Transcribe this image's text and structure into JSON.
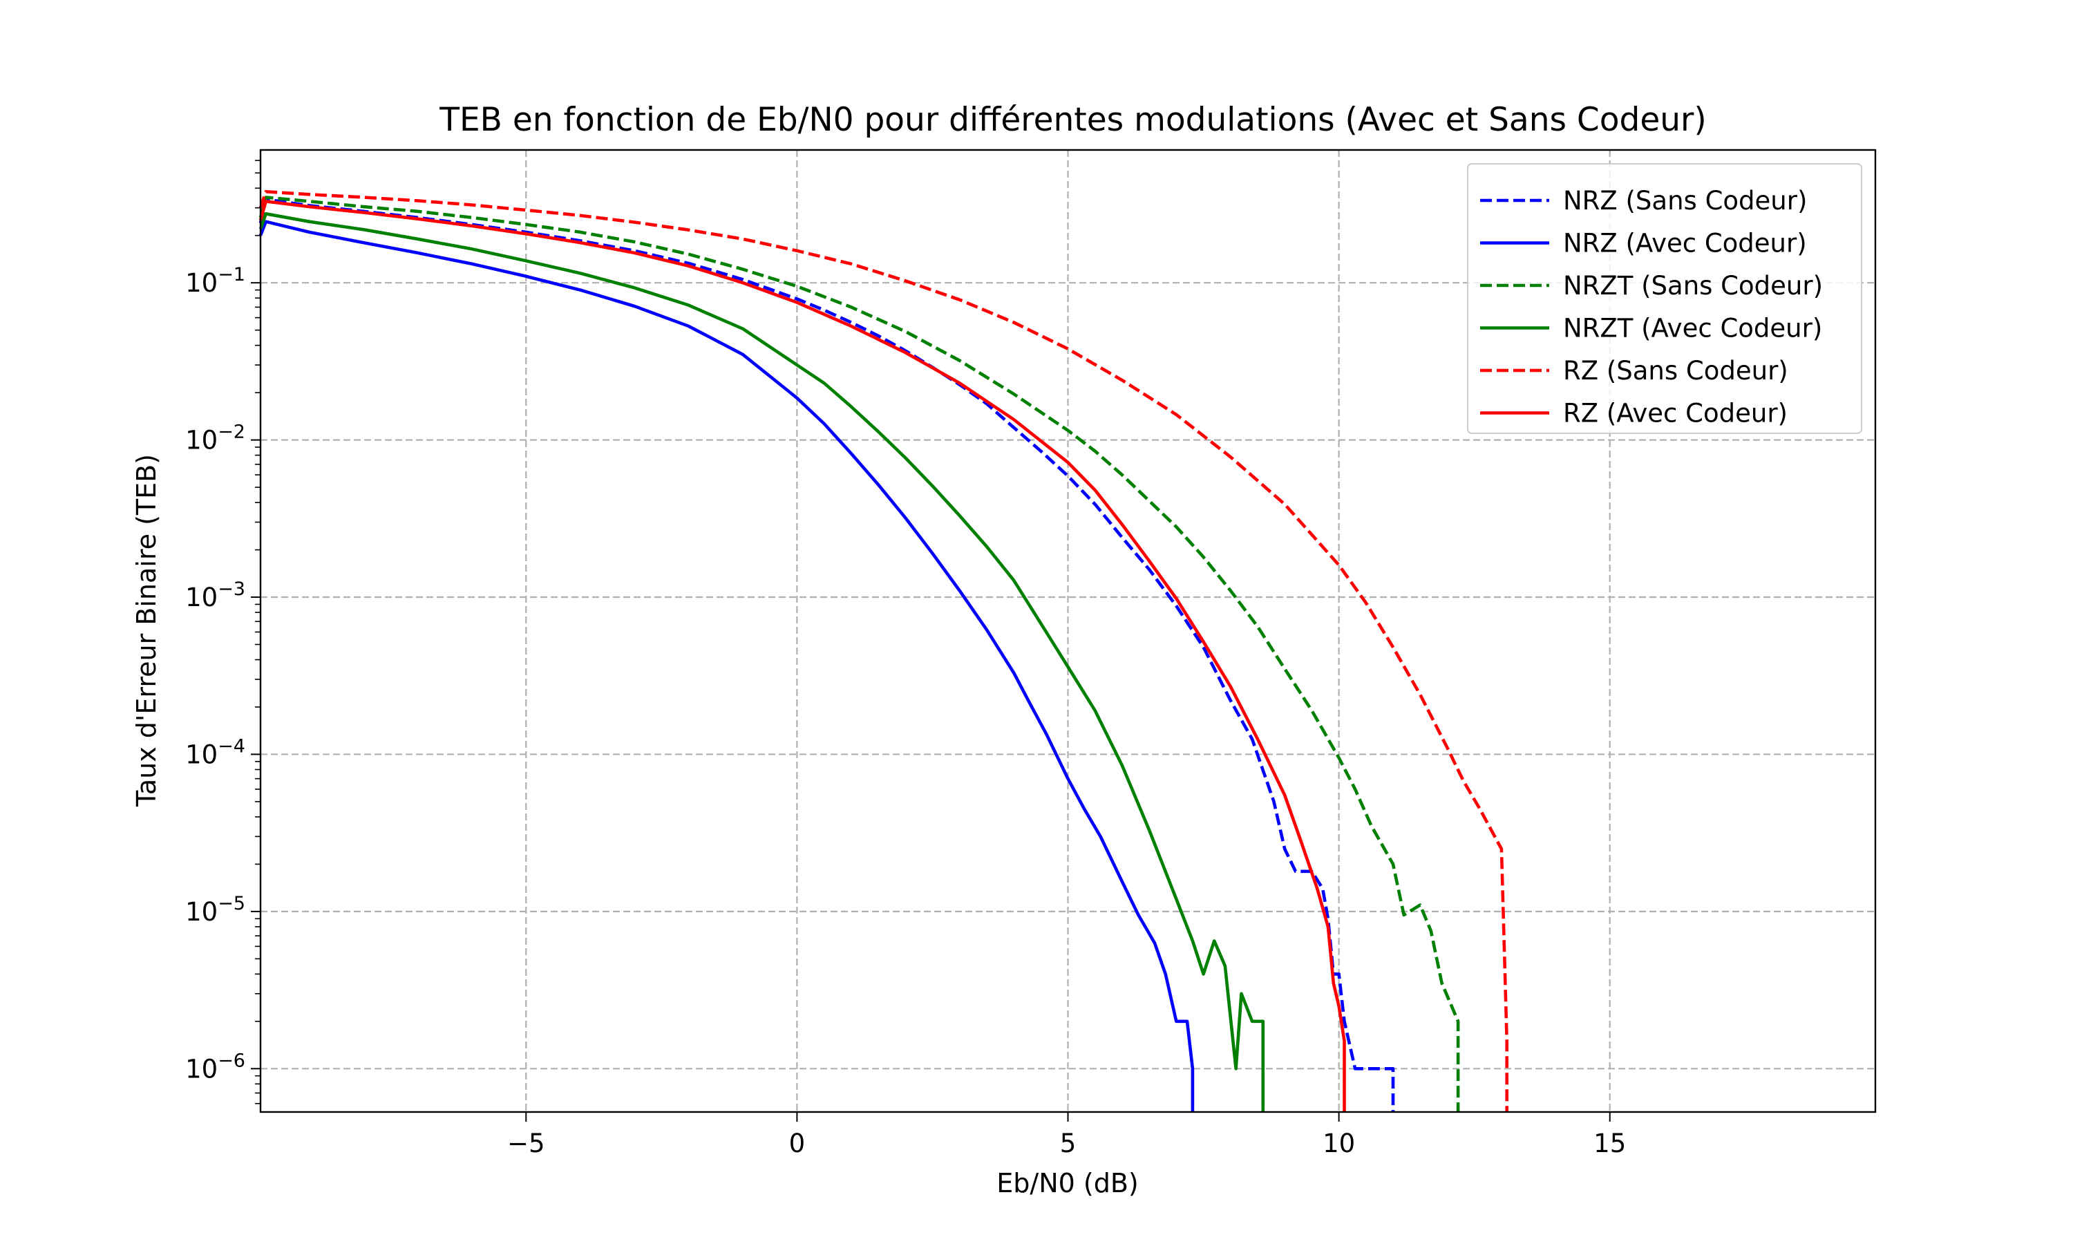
{
  "chart_data": {
    "type": "line",
    "title": "TEB en fonction de Eb/N0 pour différentes modulations (Avec et Sans Codeur)",
    "xlabel": "Eb/N0 (dB)",
    "ylabel": "Taux d'Erreur Binaire (TEB)",
    "xlim": [
      -9.9,
      19.9
    ],
    "ylim": [
      5.3e-07,
      0.7
    ],
    "yscale": "log",
    "grid": true,
    "legend_position": "top-right",
    "x_ticks": [
      -5,
      0,
      5,
      10,
      15
    ],
    "x_tick_labels": [
      "−5",
      "0",
      "5",
      "10",
      "15"
    ],
    "y_ticks": [
      1e-06,
      1e-05,
      0.0001,
      0.001,
      0.01,
      0.1
    ],
    "y_tick_labels": [
      {
        "base": "10",
        "exp": "−6"
      },
      {
        "base": "10",
        "exp": "−5"
      },
      {
        "base": "10",
        "exp": "−4"
      },
      {
        "base": "10",
        "exp": "−3"
      },
      {
        "base": "10",
        "exp": "−2"
      },
      {
        "base": "10",
        "exp": "−1"
      }
    ],
    "series": [
      {
        "name": "NRZ (Sans Codeur)",
        "color": "#0000ff",
        "style": "dashed",
        "points": [
          [
            -9.9,
            0.24
          ],
          [
            -9.8,
            0.34
          ],
          [
            -9,
            0.31
          ],
          [
            -8,
            0.285
          ],
          [
            -7,
            0.26
          ],
          [
            -6,
            0.235
          ],
          [
            -5,
            0.21
          ],
          [
            -4,
            0.185
          ],
          [
            -3,
            0.16
          ],
          [
            -2,
            0.133
          ],
          [
            -1,
            0.105
          ],
          [
            0,
            0.079
          ],
          [
            0.5,
            0.067
          ],
          [
            1,
            0.056
          ],
          [
            1.5,
            0.046
          ],
          [
            2,
            0.037
          ],
          [
            2.5,
            0.029
          ],
          [
            3,
            0.0225
          ],
          [
            3.5,
            0.017
          ],
          [
            4,
            0.012
          ],
          [
            4.5,
            0.0085
          ],
          [
            5,
            0.0059
          ],
          [
            5.5,
            0.0039
          ],
          [
            6,
            0.0024
          ],
          [
            6.5,
            0.0015
          ],
          [
            7,
            0.00088
          ],
          [
            7.5,
            0.00048
          ],
          [
            8,
            0.00022
          ],
          [
            8.4,
            0.000125
          ],
          [
            8.8,
            5e-05
          ],
          [
            9,
            2.5e-05
          ],
          [
            9.2,
            1.8e-05
          ],
          [
            9.5,
            1.8e-05
          ],
          [
            9.7,
            1.4e-05
          ],
          [
            9.8,
            9e-06
          ],
          [
            9.9,
            4e-06
          ],
          [
            10.0,
            4e-06
          ],
          [
            10.1,
            2e-06
          ],
          [
            10.3,
            1e-06
          ],
          [
            10.8,
            1e-06
          ],
          [
            11.0,
            1e-06
          ],
          [
            11.0,
            5.3e-07
          ]
        ]
      },
      {
        "name": "NRZ (Avec Codeur)",
        "color": "#0000ff",
        "style": "solid",
        "points": [
          [
            -9.9,
            0.2
          ],
          [
            -9.8,
            0.245
          ],
          [
            -9,
            0.21
          ],
          [
            -8,
            0.18
          ],
          [
            -7,
            0.155
          ],
          [
            -6,
            0.132
          ],
          [
            -5,
            0.11
          ],
          [
            -4,
            0.09
          ],
          [
            -3,
            0.071
          ],
          [
            -2,
            0.053
          ],
          [
            -1,
            0.035
          ],
          [
            0,
            0.0185
          ],
          [
            0.5,
            0.0127
          ],
          [
            1,
            0.0082
          ],
          [
            1.5,
            0.0052
          ],
          [
            2,
            0.0032
          ],
          [
            2.5,
            0.0019
          ],
          [
            3,
            0.0011
          ],
          [
            3.5,
            0.00062
          ],
          [
            4,
            0.00033
          ],
          [
            4.3,
            0.00021
          ],
          [
            4.6,
            0.000135
          ],
          [
            5,
            7e-05
          ],
          [
            5.3,
            4.5e-05
          ],
          [
            5.6,
            3e-05
          ],
          [
            6,
            1.55e-05
          ],
          [
            6.3,
            9.5e-06
          ],
          [
            6.6,
            6.3e-06
          ],
          [
            6.8,
            4e-06
          ],
          [
            7.0,
            2e-06
          ],
          [
            7.2,
            2e-06
          ],
          [
            7.3,
            1e-06
          ],
          [
            7.3,
            5.3e-07
          ]
        ]
      },
      {
        "name": "NRZT (Sans Codeur)",
        "color": "#008000",
        "style": "dashed",
        "points": [
          [
            -9.9,
            0.26
          ],
          [
            -9.8,
            0.35
          ],
          [
            -9,
            0.33
          ],
          [
            -8,
            0.305
          ],
          [
            -7,
            0.285
          ],
          [
            -6,
            0.26
          ],
          [
            -5,
            0.235
          ],
          [
            -4,
            0.21
          ],
          [
            -3,
            0.182
          ],
          [
            -2,
            0.152
          ],
          [
            -1,
            0.122
          ],
          [
            0,
            0.095
          ],
          [
            1,
            0.07
          ],
          [
            2,
            0.049
          ],
          [
            3,
            0.032
          ],
          [
            4,
            0.0196
          ],
          [
            5,
            0.0115
          ],
          [
            5.5,
            0.0085
          ],
          [
            6,
            0.006
          ],
          [
            6.5,
            0.0041
          ],
          [
            7,
            0.0028
          ],
          [
            7.5,
            0.0018
          ],
          [
            8,
            0.0011
          ],
          [
            8.5,
            0.00065
          ],
          [
            9,
            0.00035
          ],
          [
            9.5,
            0.00019
          ],
          [
            10,
            9.5e-05
          ],
          [
            10.3,
            6e-05
          ],
          [
            10.6,
            3.5e-05
          ],
          [
            11,
            2e-05
          ],
          [
            11.2,
            9.5e-06
          ],
          [
            11.5,
            1.1e-05
          ],
          [
            11.7,
            7.5e-06
          ],
          [
            11.9,
            3.5e-06
          ],
          [
            12.2,
            2e-06
          ],
          [
            12.2,
            5.3e-07
          ]
        ]
      },
      {
        "name": "NRZT (Avec Codeur)",
        "color": "#008000",
        "style": "solid",
        "points": [
          [
            -9.9,
            0.22
          ],
          [
            -9.8,
            0.275
          ],
          [
            -9,
            0.245
          ],
          [
            -8,
            0.218
          ],
          [
            -7,
            0.19
          ],
          [
            -6,
            0.164
          ],
          [
            -5,
            0.138
          ],
          [
            -4,
            0.115
          ],
          [
            -3,
            0.093
          ],
          [
            -2,
            0.072
          ],
          [
            -1,
            0.051
          ],
          [
            0,
            0.03
          ],
          [
            0.5,
            0.023
          ],
          [
            1,
            0.0163
          ],
          [
            1.5,
            0.0113
          ],
          [
            2,
            0.0077
          ],
          [
            2.5,
            0.0051
          ],
          [
            3,
            0.0033
          ],
          [
            3.5,
            0.0021
          ],
          [
            4,
            0.00128
          ],
          [
            4.5,
            0.00068
          ],
          [
            5,
            0.00036
          ],
          [
            5.5,
            0.00019
          ],
          [
            6,
            8.5e-05
          ],
          [
            6.5,
            3.3e-05
          ],
          [
            7,
            1.2e-05
          ],
          [
            7.3,
            6.5e-06
          ],
          [
            7.5,
            4e-06
          ],
          [
            7.7,
            6.5e-06
          ],
          [
            7.9,
            4.5e-06
          ],
          [
            8.1,
            1e-06
          ],
          [
            8.2,
            3e-06
          ],
          [
            8.4,
            2e-06
          ],
          [
            8.6,
            2e-06
          ],
          [
            8.6,
            5.3e-07
          ]
        ]
      },
      {
        "name": "RZ (Sans Codeur)",
        "color": "#ff0000",
        "style": "dashed",
        "points": [
          [
            -9.9,
            0.3
          ],
          [
            -9.8,
            0.38
          ],
          [
            -9,
            0.365
          ],
          [
            -8,
            0.35
          ],
          [
            -7,
            0.333
          ],
          [
            -6,
            0.313
          ],
          [
            -5,
            0.29
          ],
          [
            -4,
            0.268
          ],
          [
            -3,
            0.243
          ],
          [
            -2,
            0.217
          ],
          [
            -1,
            0.19
          ],
          [
            0,
            0.16
          ],
          [
            1,
            0.132
          ],
          [
            2,
            0.103
          ],
          [
            3,
            0.078
          ],
          [
            4,
            0.056
          ],
          [
            5,
            0.038
          ],
          [
            6,
            0.024
          ],
          [
            7,
            0.0145
          ],
          [
            8,
            0.0078
          ],
          [
            9,
            0.0039
          ],
          [
            10,
            0.0016
          ],
          [
            10.5,
            0.00092
          ],
          [
            11,
            0.00048
          ],
          [
            11.5,
            0.00024
          ],
          [
            12,
            0.00011
          ],
          [
            12.3,
            6.75e-05
          ],
          [
            12.6,
            4.5e-05
          ],
          [
            13,
            2.5e-05
          ],
          [
            13.1,
            1.5e-06
          ],
          [
            13.1,
            5.3e-07
          ]
        ]
      },
      {
        "name": "RZ (Avec Codeur)",
        "color": "#ff0000",
        "style": "solid",
        "points": [
          [
            -9.9,
            0.25
          ],
          [
            -9.8,
            0.33
          ],
          [
            -9,
            0.305
          ],
          [
            -8,
            0.28
          ],
          [
            -7,
            0.255
          ],
          [
            -6,
            0.23
          ],
          [
            -5,
            0.205
          ],
          [
            -4,
            0.18
          ],
          [
            -3,
            0.155
          ],
          [
            -2,
            0.128
          ],
          [
            -1,
            0.1
          ],
          [
            0,
            0.075
          ],
          [
            1,
            0.053
          ],
          [
            2,
            0.036
          ],
          [
            3,
            0.023
          ],
          [
            4,
            0.0135
          ],
          [
            5,
            0.0072
          ],
          [
            5.5,
            0.0048
          ],
          [
            6,
            0.0029
          ],
          [
            6.5,
            0.0017
          ],
          [
            7,
            0.00098
          ],
          [
            7.5,
            0.00052
          ],
          [
            8,
            0.00027
          ],
          [
            8.5,
            0.000125
          ],
          [
            9,
            5.5e-05
          ],
          [
            9.3,
            2.8e-05
          ],
          [
            9.6,
            1.4e-05
          ],
          [
            9.8,
            8e-06
          ],
          [
            9.9,
            3.5e-06
          ],
          [
            10.0,
            2.5e-06
          ],
          [
            10.1,
            1.5e-06
          ],
          [
            10.1,
            5.3e-07
          ]
        ]
      }
    ]
  }
}
